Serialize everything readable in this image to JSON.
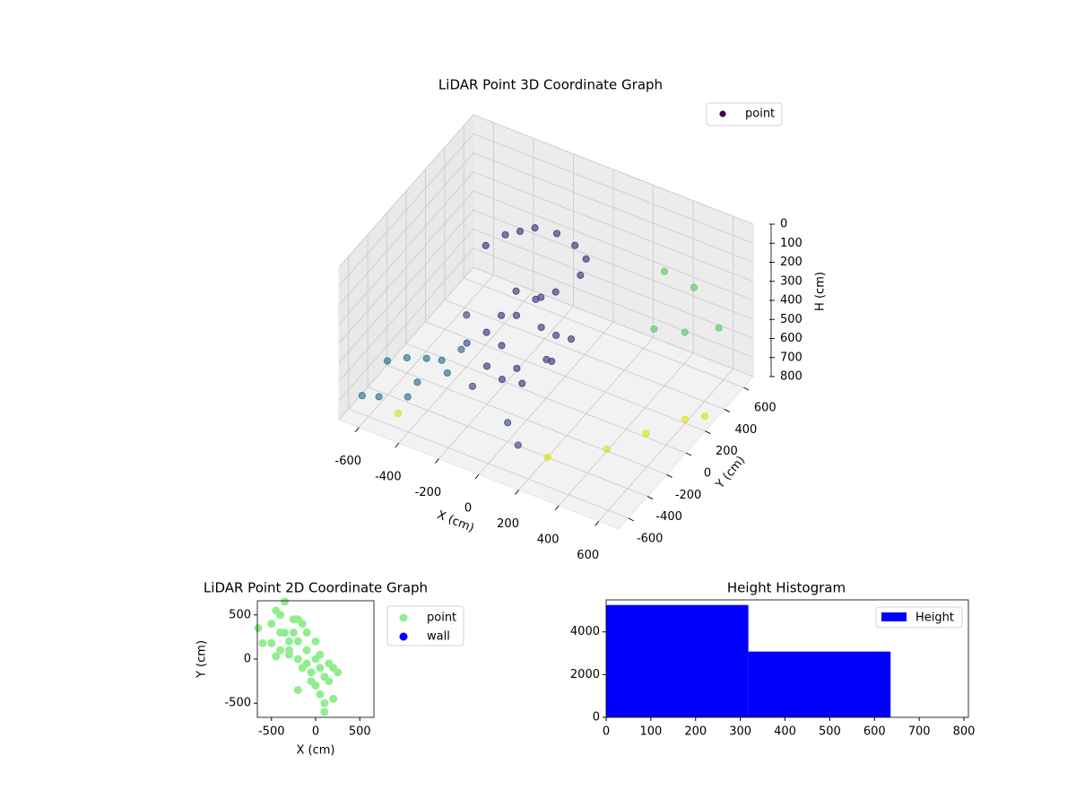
{
  "chart_data": [
    {
      "type": "scatter3d",
      "title": "LiDAR Point 3D Coordinate Graph",
      "xlabel": "X (cm)",
      "ylabel": "Y (cm)",
      "zlabel": "H (cm)",
      "xlim": [
        -700,
        700
      ],
      "ylim": [
        -700,
        700
      ],
      "zlim": [
        0,
        800
      ],
      "z_inverted": true,
      "xticks": [
        -600,
        -400,
        -200,
        0,
        200,
        400,
        600
      ],
      "yticks": [
        -600,
        -400,
        -200,
        0,
        200,
        400,
        600
      ],
      "zticks": [
        0,
        100,
        200,
        300,
        400,
        500,
        600,
        700,
        800
      ],
      "grid": true,
      "legend": "upper right",
      "series": [
        {
          "name": "point",
          "color": "#440154",
          "x": [
            -300,
            -250,
            -200,
            -100,
            0,
            80,
            -350,
            100,
            -150,
            -100,
            -50,
            0,
            -200,
            50,
            -100,
            0,
            -150,
            -50,
            50,
            -100,
            0,
            100,
            150,
            -250,
            -200,
            -350,
            -300,
            -200,
            0,
            100,
            -650,
            -600,
            -500,
            -550,
            -450,
            -400,
            -350,
            -680,
            -620,
            -500,
            500,
            550,
            600,
            400,
            300,
            650,
            600,
            400,
            200,
            -500,
            500
          ],
          "y": [
            200,
            250,
            300,
            320,
            300,
            250,
            100,
            150,
            0,
            -100,
            50,
            -50,
            -50,
            0,
            100,
            100,
            -150,
            -200,
            -100,
            -250,
            -250,
            -150,
            -50,
            -100,
            -200,
            -100,
            -200,
            -350,
            -400,
            -500,
            -300,
            -200,
            -300,
            -100,
            -150,
            -50,
            -300,
            -500,
            -450,
            -400,
            500,
            300,
            550,
            400,
            500,
            300,
            200,
            -200,
            -400,
            -500,
            0
          ],
          "z": [
            180,
            170,
            160,
            160,
            170,
            180,
            200,
            200,
            300,
            350,
            320,
            400,
            420,
            450,
            380,
            300,
            500,
            550,
            520,
            600,
            580,
            480,
            400,
            500,
            600,
            450,
            520,
            620,
            700,
            720,
            700,
            720,
            750,
            760,
            700,
            680,
            640,
            780,
            790,
            770,
            300,
            400,
            500,
            200,
            600,
            800,
            780,
            790,
            800,
            800,
            780
          ],
          "colors": [
            "#45337d",
            "#45337d",
            "#45337d",
            "#45337d",
            "#45337d",
            "#45337d",
            "#45337d",
            "#45337d",
            "#45337d",
            "#45337d",
            "#45337d",
            "#45337d",
            "#45337d",
            "#45337d",
            "#45337d",
            "#45337d",
            "#45337d",
            "#45337d",
            "#45337d",
            "#45337d",
            "#45337d",
            "#45337d",
            "#45337d",
            "#45337d",
            "#45337d",
            "#3e4a89",
            "#3e4a89",
            "#3e4a89",
            "#3e4a89",
            "#3e4a89",
            "#2c728e",
            "#2c728e",
            "#2c728e",
            "#2c728e",
            "#2c728e",
            "#2c728e",
            "#2c728e",
            "#2c728e",
            "#2c728e",
            "#2c728e",
            "#5ec962",
            "#5ec962",
            "#5ec962",
            "#5ec962",
            "#5ec962",
            "#d8e219",
            "#d8e219",
            "#d8e219",
            "#d8e219",
            "#d8e219",
            "#d8e219"
          ]
        }
      ]
    },
    {
      "type": "scatter",
      "title": "LiDAR Point 2D Coordinate Graph",
      "xlabel": "X (cm)",
      "ylabel": "Y (cm)",
      "xlim": [
        -660,
        660
      ],
      "ylim": [
        -660,
        660
      ],
      "xticks": [
        -500,
        0,
        500
      ],
      "yticks": [
        -500,
        0,
        500
      ],
      "legend": "outside right",
      "series": [
        {
          "name": "point",
          "color": "#90ee90",
          "x": [
            -650,
            -600,
            -500,
            -500,
            -450,
            -400,
            -350,
            -250,
            -200,
            -150,
            -100,
            -450,
            -400,
            -300,
            -200,
            -100,
            -50,
            0,
            50,
            100,
            100,
            200,
            -200,
            -300,
            -200,
            -100,
            0,
            50,
            100,
            150,
            200,
            250,
            150,
            -350,
            -250,
            0,
            -50,
            -150,
            -300,
            50,
            -400
          ],
          "y": [
            350,
            180,
            180,
            400,
            550,
            500,
            650,
            450,
            450,
            400,
            300,
            30,
            100,
            50,
            0,
            -50,
            -150,
            -300,
            -400,
            -500,
            -600,
            -450,
            -350,
            200,
            200,
            100,
            0,
            -100,
            -200,
            -250,
            -100,
            -150,
            -50,
            300,
            300,
            200,
            -250,
            -100,
            100,
            50,
            300
          ]
        },
        {
          "name": "wall",
          "color": "#0000ff",
          "x": [],
          "y": []
        }
      ]
    },
    {
      "type": "histogram",
      "title": "Height Histogram",
      "xlim": [
        0,
        810
      ],
      "ylim": [
        0,
        5500
      ],
      "xticks": [
        0,
        100,
        200,
        300,
        400,
        500,
        600,
        700,
        800
      ],
      "yticks": [
        0,
        2000,
        4000
      ],
      "bins": [
        0,
        318,
        636
      ],
      "counts": [
        5260,
        3080
      ],
      "name": "Height",
      "color": "#0000ff",
      "legend": "upper right"
    }
  ]
}
